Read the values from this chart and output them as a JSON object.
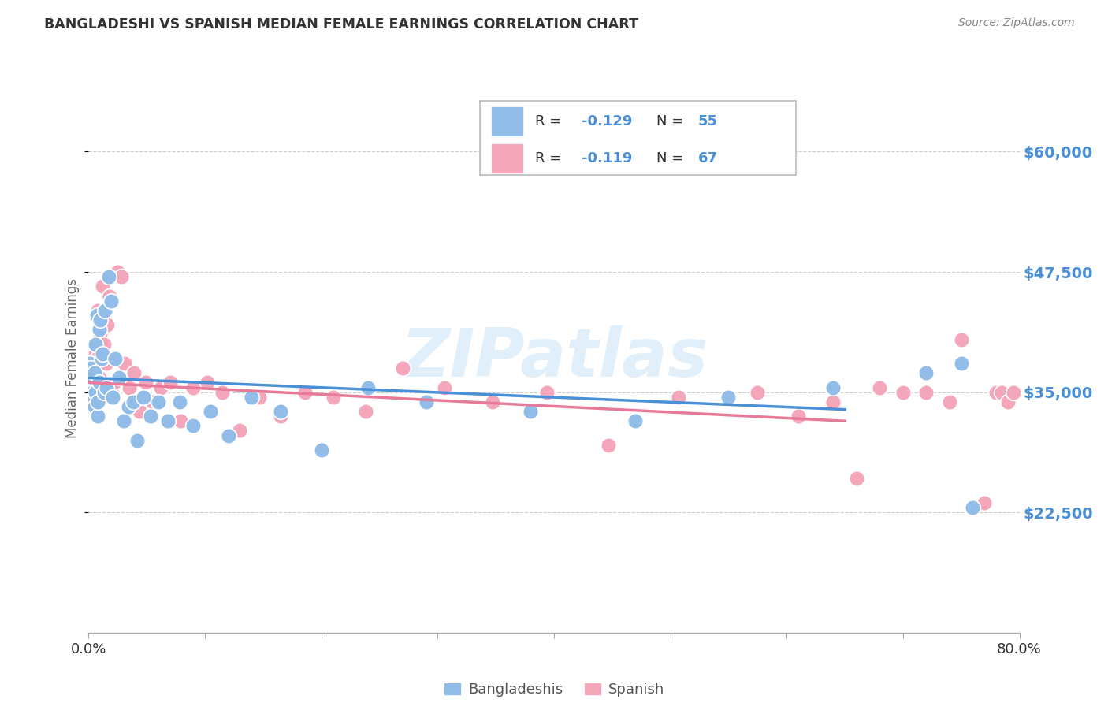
{
  "title": "BANGLADESHI VS SPANISH MEDIAN FEMALE EARNINGS CORRELATION CHART",
  "source": "Source: ZipAtlas.com",
  "ylabel": "Median Female Earnings",
  "ytick_labels": [
    "$22,500",
    "$35,000",
    "$47,500",
    "$60,000"
  ],
  "ytick_values": [
    22500,
    35000,
    47500,
    60000
  ],
  "ymin": 10000,
  "ymax": 67000,
  "xmin": 0.0,
  "xmax": 0.8,
  "watermark": "ZIPatlas",
  "color_blue": "#92bde8",
  "color_pink": "#f4a7bb",
  "color_blue_text": "#4a90d9",
  "trendline_blue": "#4a90d9",
  "trendline_pink": "#e87a99",
  "background": "#ffffff",
  "bangladeshi_x": [
    0.001,
    0.001,
    0.002,
    0.002,
    0.002,
    0.003,
    0.003,
    0.003,
    0.003,
    0.004,
    0.004,
    0.005,
    0.005,
    0.006,
    0.006,
    0.007,
    0.008,
    0.008,
    0.009,
    0.009,
    0.01,
    0.011,
    0.012,
    0.013,
    0.014,
    0.015,
    0.017,
    0.019,
    0.021,
    0.023,
    0.026,
    0.03,
    0.034,
    0.038,
    0.042,
    0.047,
    0.053,
    0.06,
    0.068,
    0.078,
    0.09,
    0.105,
    0.12,
    0.14,
    0.165,
    0.2,
    0.24,
    0.29,
    0.38,
    0.47,
    0.55,
    0.64,
    0.72,
    0.75,
    0.76
  ],
  "bangladeshi_y": [
    38000,
    36500,
    37500,
    35500,
    34000,
    36000,
    35000,
    34500,
    33500,
    36500,
    34000,
    37000,
    33500,
    40000,
    35000,
    43000,
    32500,
    34000,
    41500,
    36000,
    42500,
    38500,
    39000,
    35000,
    43500,
    35500,
    47000,
    44500,
    34500,
    38500,
    36500,
    32000,
    33500,
    34000,
    30000,
    34500,
    32500,
    34000,
    32000,
    34000,
    31500,
    33000,
    30500,
    34500,
    33000,
    29000,
    35500,
    34000,
    33000,
    32000,
    34500,
    35500,
    37000,
    38000,
    23000
  ],
  "spanish_x": [
    0.001,
    0.001,
    0.002,
    0.002,
    0.003,
    0.003,
    0.004,
    0.004,
    0.004,
    0.005,
    0.005,
    0.006,
    0.006,
    0.007,
    0.008,
    0.008,
    0.009,
    0.01,
    0.011,
    0.012,
    0.013,
    0.015,
    0.016,
    0.018,
    0.02,
    0.022,
    0.025,
    0.028,
    0.031,
    0.035,
    0.039,
    0.044,
    0.049,
    0.055,
    0.062,
    0.07,
    0.079,
    0.09,
    0.102,
    0.115,
    0.13,
    0.147,
    0.165,
    0.186,
    0.21,
    0.238,
    0.27,
    0.306,
    0.347,
    0.394,
    0.447,
    0.507,
    0.575,
    0.61,
    0.64,
    0.66,
    0.68,
    0.7,
    0.72,
    0.74,
    0.75,
    0.76,
    0.77,
    0.78,
    0.785,
    0.79,
    0.795
  ],
  "spanish_y": [
    36000,
    35500,
    37000,
    34500,
    36500,
    35000,
    38000,
    34500,
    37500,
    35000,
    34000,
    39000,
    33500,
    38500,
    43500,
    37000,
    36500,
    41000,
    40000,
    46000,
    40000,
    38000,
    42000,
    45000,
    35000,
    36000,
    47500,
    47000,
    38000,
    35500,
    37000,
    33000,
    36000,
    34000,
    35500,
    36000,
    32000,
    35500,
    36000,
    35000,
    31000,
    34500,
    32500,
    35000,
    34500,
    33000,
    37500,
    35500,
    34000,
    35000,
    29500,
    34500,
    35000,
    32500,
    34000,
    26000,
    35500,
    35000,
    35000,
    34000,
    40500,
    23000,
    23500,
    35000,
    35000,
    34000,
    35000
  ],
  "bangladeshi_trend_x": [
    0.0,
    0.65
  ],
  "bangladeshi_trend_y": [
    36500,
    33200
  ],
  "spanish_trend_x": [
    0.0,
    0.65
  ],
  "spanish_trend_y": [
    36000,
    32000
  ]
}
